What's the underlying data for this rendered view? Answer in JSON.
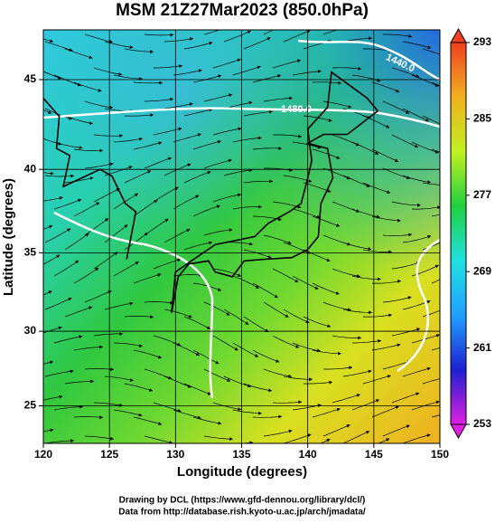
{
  "chart_data": {
    "type": "map",
    "title": "MSM 21Z27Mar2023 (850.0hPa)",
    "xlabel": "Longitude (degrees)",
    "ylabel": "Latitude  (degrees)",
    "xlim": [
      120,
      150
    ],
    "ylim": [
      22.4,
      47.6
    ],
    "xticks": [
      120,
      125,
      130,
      135,
      140,
      145,
      150
    ],
    "yticks": [
      25,
      30,
      35,
      40,
      45
    ],
    "grid": true,
    "colorbar": {
      "lim": [
        253,
        293
      ],
      "ticks": [
        253,
        261,
        269,
        277,
        285,
        293
      ],
      "colors": [
        "#e020e0",
        "#2020d0",
        "#20a0ff",
        "#20e0e0",
        "#20d040",
        "#c0f020",
        "#f0b020",
        "#f04020"
      ]
    },
    "contour_labels": [
      {
        "value": 1440,
        "label": "1440.0"
      },
      {
        "value": 1480,
        "label": "1480.0"
      }
    ],
    "footer": [
      "Drawing by DCL (https://www.gfd-dennou.org/library/dcl/)",
      "Data from http://database.rish.kyoto-u.ac.jp/arch/jmadata/"
    ]
  }
}
